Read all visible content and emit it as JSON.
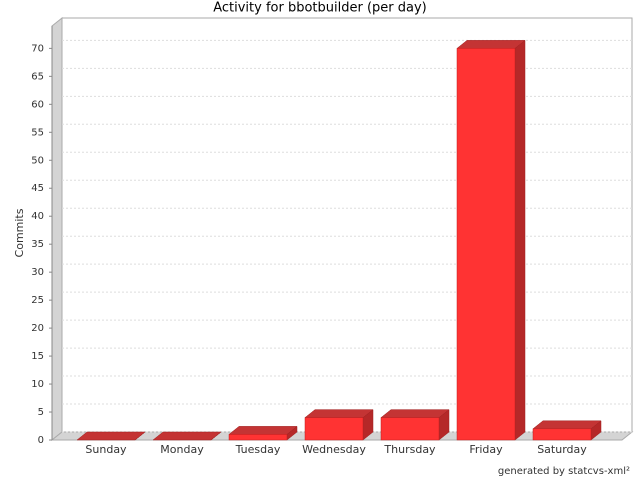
{
  "chart_data": {
    "type": "bar3d",
    "title": "Activity for bbotbuilder (per day)",
    "y_label": "Commits",
    "categories": [
      "Sunday",
      "Monday",
      "Tuesday",
      "Wednesday",
      "Thursday",
      "Friday",
      "Saturday"
    ],
    "values": [
      0,
      0,
      1,
      4,
      4,
      70,
      2
    ],
    "color": "#ff3333",
    "ylim": [
      0,
      74
    ],
    "yticks": [
      0,
      5,
      10,
      15,
      20,
      25,
      30,
      35,
      40,
      45,
      50,
      55,
      60,
      65,
      70
    ],
    "grid": true,
    "footer": "generated by statcvs-xml²"
  }
}
